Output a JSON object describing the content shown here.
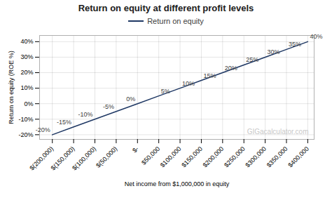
{
  "chart_data": {
    "type": "line",
    "title": "Return on equity at different profit levels",
    "xlabel": "Net income from $1,000,000 in equity",
    "ylabel": "Return on equity (ROE %)",
    "x": [
      -200000,
      -150000,
      -100000,
      -50000,
      0,
      50000,
      100000,
      150000,
      200000,
      250000,
      300000,
      350000,
      400000
    ],
    "series": [
      {
        "name": "Return on equity",
        "color": "#1F3864",
        "values": [
          -20,
          -15,
          -10,
          -5,
          0,
          5,
          10,
          15,
          20,
          25,
          30,
          35,
          40
        ],
        "value_labels": [
          "-20%",
          "-15%",
          "-10%",
          "-5%",
          "0%",
          "5%",
          "10%",
          "15%",
          "20%",
          "25%",
          "30%",
          "35%",
          "40%"
        ]
      }
    ],
    "xlim": [
      -230000,
      415000
    ],
    "ylim": [
      -23,
      44
    ],
    "xticks": [
      {
        "value": -200000,
        "label": "$(200,000)"
      },
      {
        "value": -150000,
        "label": "$(150,000)"
      },
      {
        "value": -100000,
        "label": "$(100,000)"
      },
      {
        "value": -50000,
        "label": "$(50,000)"
      },
      {
        "value": 0,
        "label": "$-"
      },
      {
        "value": 50000,
        "label": "$50,000"
      },
      {
        "value": 100000,
        "label": "$100,000"
      },
      {
        "value": 150000,
        "label": "$150,000"
      },
      {
        "value": 200000,
        "label": "$200,000"
      },
      {
        "value": 250000,
        "label": "$250,000"
      },
      {
        "value": 300000,
        "label": "$300,000"
      },
      {
        "value": 350000,
        "label": "$350,000"
      },
      {
        "value": 400000,
        "label": "$400,000"
      }
    ],
    "yticks": [
      {
        "value": -20,
        "label": "-20%"
      },
      {
        "value": -10,
        "label": "-10%"
      },
      {
        "value": 0,
        "label": "0%"
      },
      {
        "value": 10,
        "label": "10%"
      },
      {
        "value": 20,
        "label": "20%"
      },
      {
        "value": 30,
        "label": "30%"
      },
      {
        "value": 40,
        "label": "40%"
      }
    ],
    "grid": true,
    "legend": "top",
    "data_labels": true,
    "annotations": [
      "GIGacalculator.com"
    ]
  }
}
